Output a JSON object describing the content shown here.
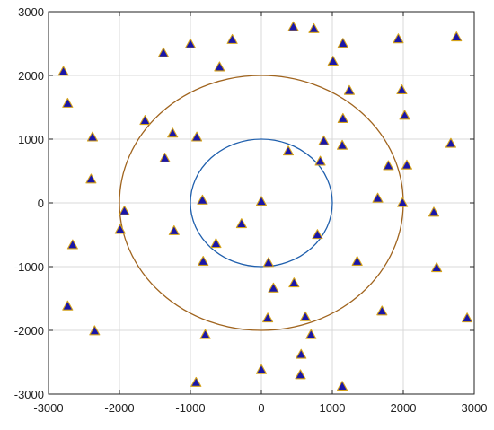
{
  "chart_data": {
    "type": "scatter",
    "title": "",
    "xlabel": "",
    "ylabel": "",
    "xlim": [
      -3000,
      3000
    ],
    "ylim": [
      -3000,
      3000
    ],
    "grid": true,
    "x_ticks": [
      -3000,
      -2000,
      -1000,
      0,
      1000,
      2000,
      3000
    ],
    "y_ticks": [
      3000,
      2000,
      1000,
      0,
      -1000,
      -2000,
      -3000
    ],
    "x_tick_labels": [
      "-3000",
      "-2000",
      "-1000",
      "0",
      "1000",
      "2000",
      "3000"
    ],
    "y_tick_labels": [
      "3000",
      "2000",
      "1000",
      "0",
      "-1000",
      "-2000",
      "-3000"
    ],
    "circles": [
      {
        "cx": 0,
        "cy": 0,
        "r": 1000,
        "color": "#1f5fad"
      },
      {
        "cx": 0,
        "cy": 0,
        "r": 2000,
        "color": "#a0641e"
      }
    ],
    "marker": {
      "shape": "triangle",
      "fill": "#1a16a8",
      "edge": "#d4a21a"
    },
    "points": [
      [
        450,
        2760
      ],
      [
        740,
        2730
      ],
      [
        1150,
        2500
      ],
      [
        1930,
        2570
      ],
      [
        2750,
        2600
      ],
      [
        -1000,
        2490
      ],
      [
        -410,
        2560
      ],
      [
        -1380,
        2350
      ],
      [
        1010,
        2220
      ],
      [
        -590,
        2130
      ],
      [
        -2790,
        2060
      ],
      [
        1980,
        1770
      ],
      [
        1240,
        1760
      ],
      [
        -2730,
        1560
      ],
      [
        -1640,
        1290
      ],
      [
        2020,
        1370
      ],
      [
        1150,
        1320
      ],
      [
        -1250,
        1090
      ],
      [
        -2380,
        1030
      ],
      [
        -910,
        1030
      ],
      [
        880,
        970
      ],
      [
        1140,
        900
      ],
      [
        2670,
        930
      ],
      [
        380,
        810
      ],
      [
        -1360,
        700
      ],
      [
        830,
        650
      ],
      [
        1790,
        580
      ],
      [
        2050,
        590
      ],
      [
        -2400,
        370
      ],
      [
        1640,
        70
      ],
      [
        -830,
        40
      ],
      [
        0,
        20
      ],
      [
        1990,
        0
      ],
      [
        -1930,
        -130
      ],
      [
        2430,
        -150
      ],
      [
        -280,
        -330
      ],
      [
        -1990,
        -420
      ],
      [
        -1230,
        -440
      ],
      [
        790,
        -500
      ],
      [
        -640,
        -640
      ],
      [
        -2660,
        -660
      ],
      [
        -820,
        -920
      ],
      [
        100,
        -940
      ],
      [
        1350,
        -920
      ],
      [
        2470,
        -1020
      ],
      [
        460,
        -1260
      ],
      [
        170,
        -1340
      ],
      [
        -2730,
        -1620
      ],
      [
        1700,
        -1700
      ],
      [
        90,
        -1810
      ],
      [
        620,
        -1790
      ],
      [
        2900,
        -1810
      ],
      [
        -2350,
        -2010
      ],
      [
        -790,
        -2070
      ],
      [
        700,
        -2070
      ],
      [
        560,
        -2380
      ],
      [
        0,
        -2620
      ],
      [
        550,
        -2700
      ],
      [
        -920,
        -2820
      ],
      [
        1140,
        -2880
      ]
    ]
  }
}
